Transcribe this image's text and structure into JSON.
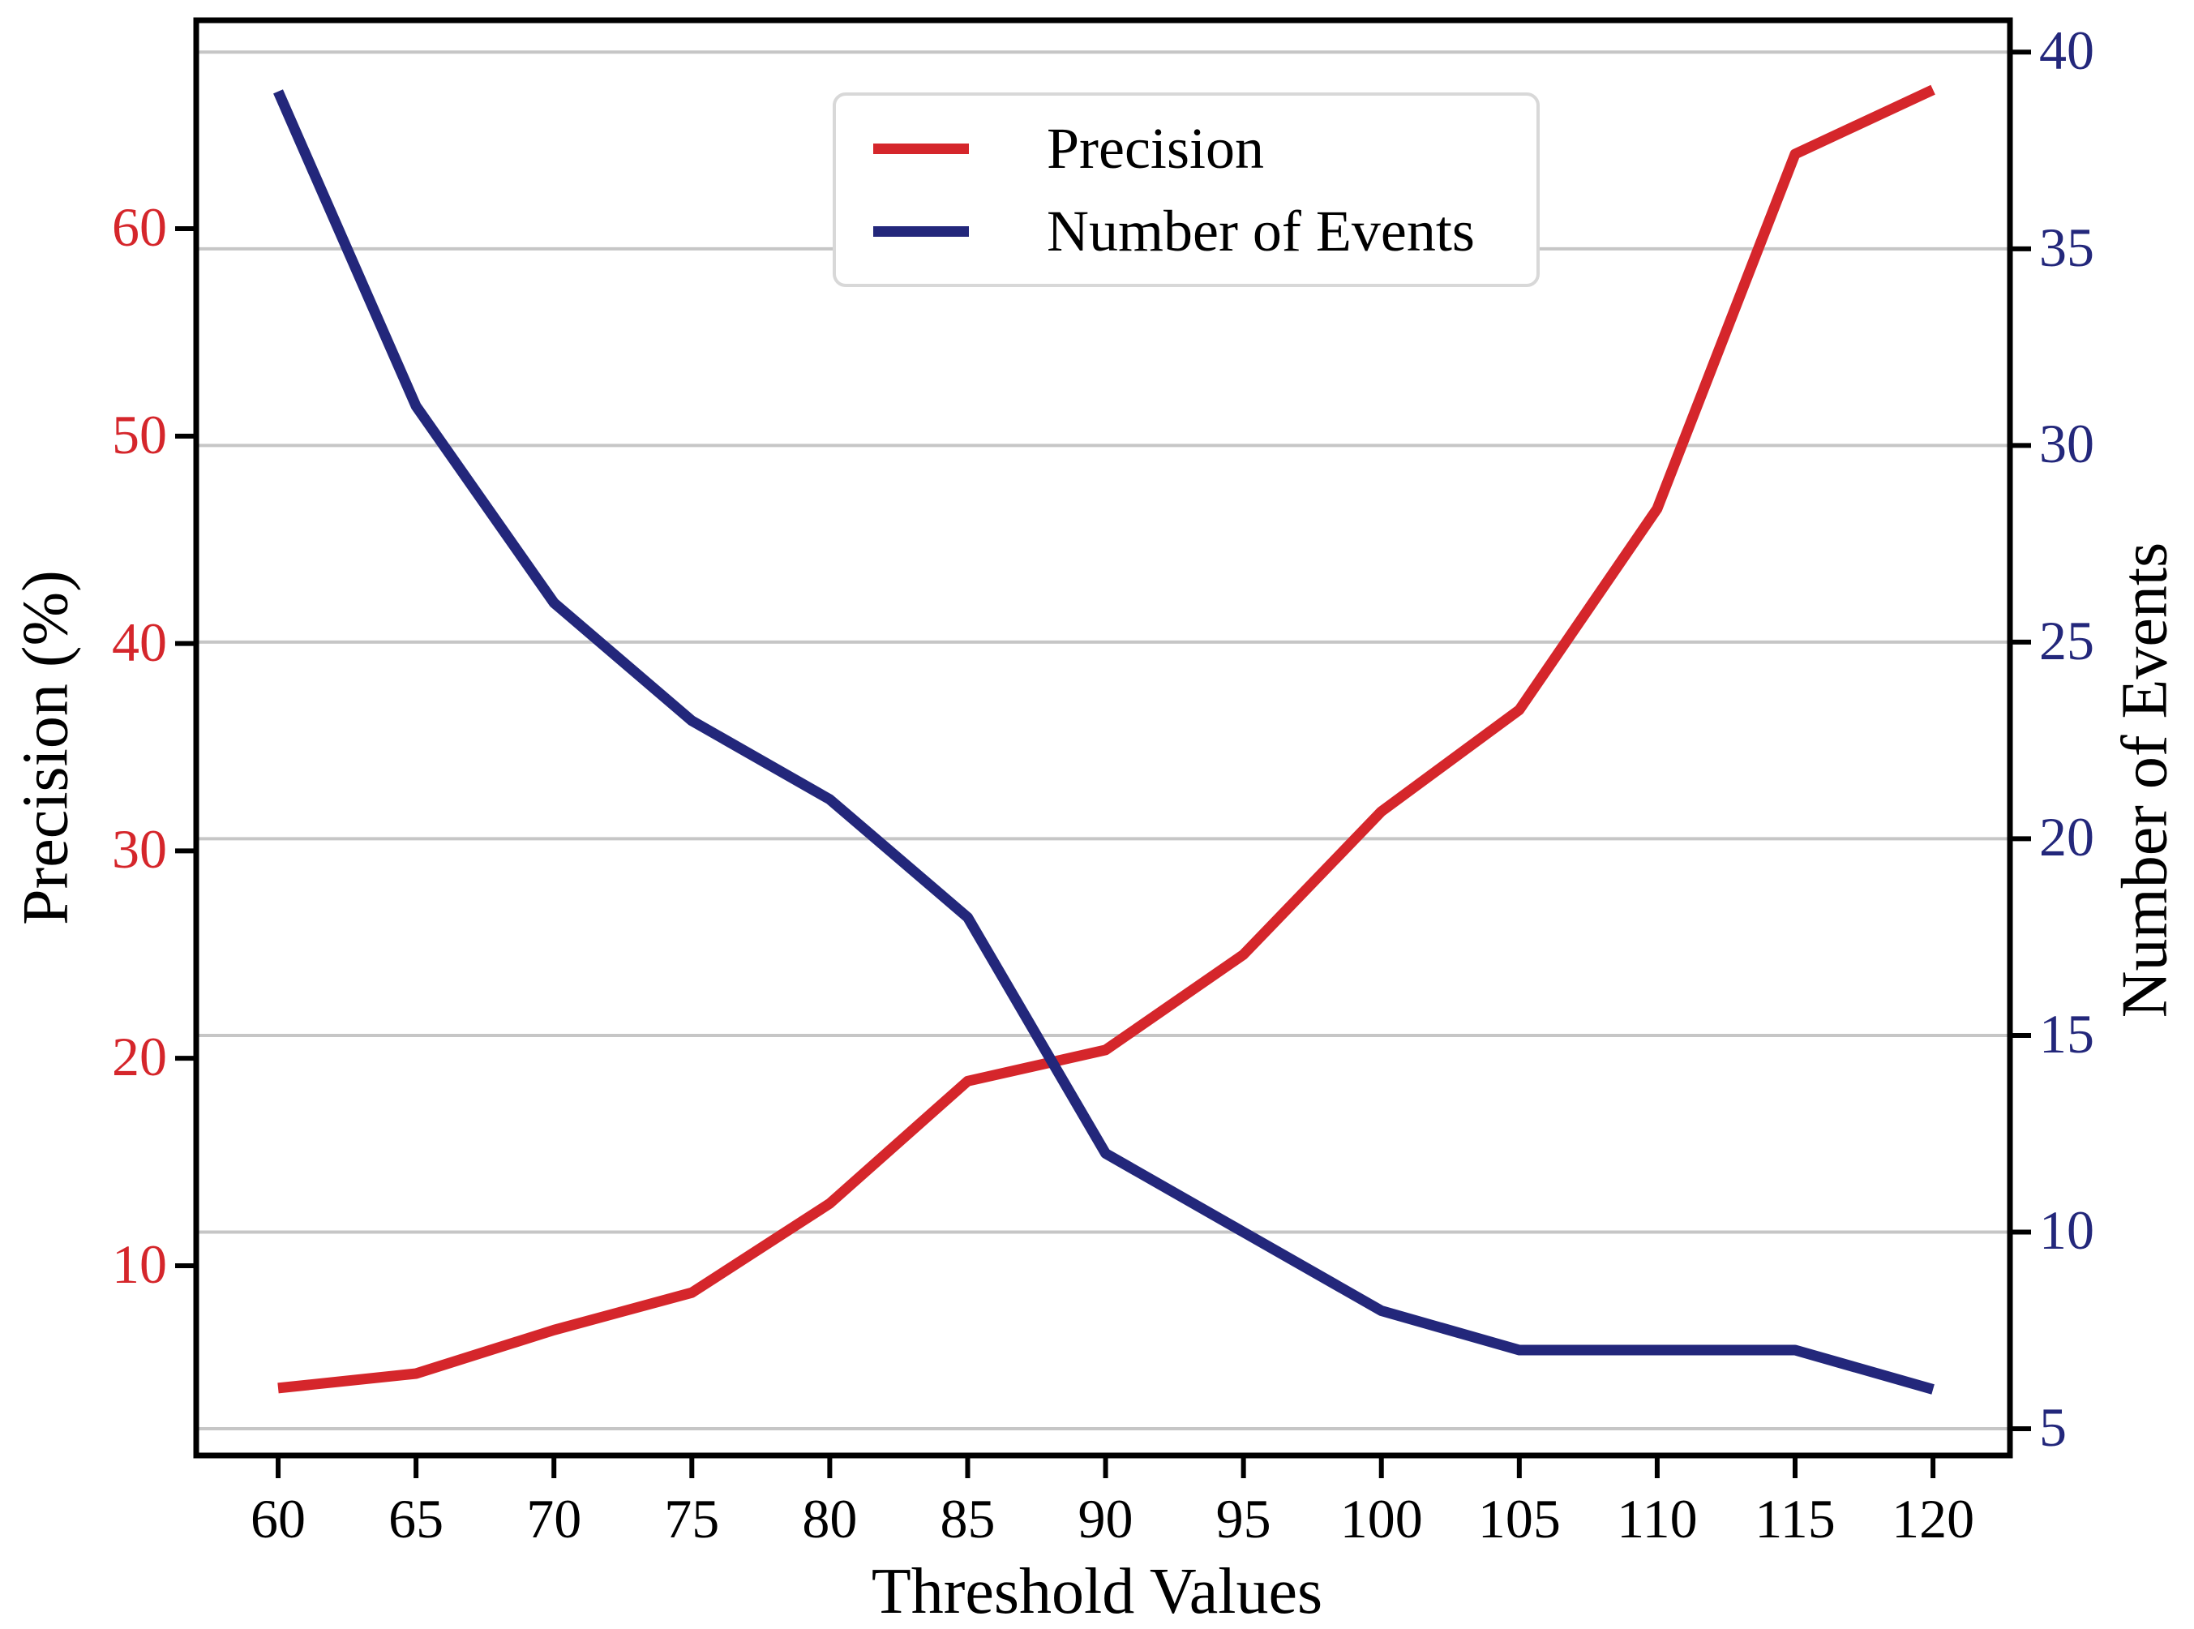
{
  "chart_data": {
    "type": "line",
    "title": "",
    "xlabel": "Threshold Values",
    "ylabel_left": "Precision (%)",
    "ylabel_right": "Number of Events",
    "x": [
      60,
      65,
      70,
      75,
      80,
      85,
      90,
      95,
      100,
      105,
      110,
      115,
      120
    ],
    "series": [
      {
        "name": "Precision",
        "axis": "left",
        "color": "#d5262b",
        "values": [
          4.1,
          4.8,
          6.9,
          8.7,
          13.0,
          18.9,
          20.4,
          25.0,
          31.9,
          36.8,
          46.5,
          63.6,
          66.7
        ]
      },
      {
        "name": "Number of Events",
        "axis": "right",
        "color": "#23277b",
        "values": [
          39,
          31,
          26,
          23,
          21,
          18,
          12,
          10,
          8,
          7,
          7,
          7,
          6
        ]
      }
    ],
    "x_ticks": [
      60,
      65,
      70,
      75,
      80,
      85,
      90,
      95,
      100,
      105,
      110,
      115,
      120
    ],
    "left_ticks": [
      10,
      20,
      30,
      40,
      50,
      60
    ],
    "right_ticks": [
      5,
      10,
      15,
      20,
      25,
      30,
      35,
      40
    ],
    "xlim": [
      57.03,
      122.79
    ],
    "ylim_left": [
      0.85,
      70.05
    ],
    "ylim_right": [
      4.32,
      40.81
    ],
    "grid": "horizontal gridlines aligned to right-axis ticks",
    "legend_position": "upper center",
    "legend": {
      "entries": [
        "Precision",
        "Number of Events"
      ]
    },
    "colors": {
      "precision_line": "#d5262b",
      "events_line": "#23277b",
      "gridline": "#c6c6c6",
      "spine": "#000000",
      "left_tick_text": "#d5262b",
      "right_tick_text": "#23277b",
      "x_tick_text": "#000000",
      "background": "#ffffff"
    }
  }
}
